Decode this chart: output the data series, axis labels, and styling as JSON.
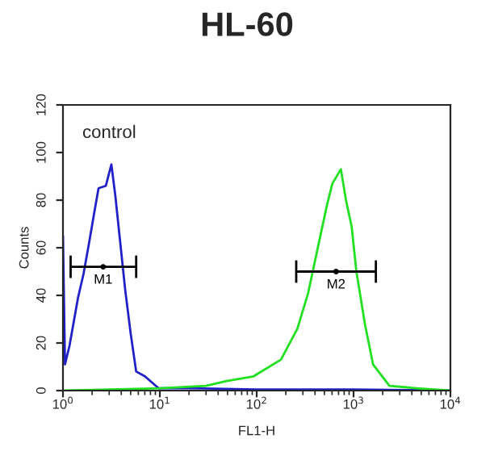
{
  "chart_data": {
    "type": "line",
    "title": "HL-60",
    "xlabel": "FL1-H",
    "ylabel": "Counts",
    "log": "x",
    "xlim": [
      1,
      10000
    ],
    "ylim": [
      0,
      120
    ],
    "xticks": [
      {
        "value": 1,
        "label": "10$^{0}$"
      },
      {
        "value": 10,
        "label": "10$^{1}$"
      },
      {
        "value": 100,
        "label": "10$^{2}$"
      },
      {
        "value": 1000,
        "label": "10$^{3}$"
      },
      {
        "value": 10000,
        "label": "10$^{4}$"
      }
    ],
    "yticks": [
      0,
      20,
      40,
      60,
      80,
      100,
      120
    ],
    "grid": false,
    "legend": false,
    "marker": "none",
    "line_style": "solid",
    "annotations": [
      "control"
    ],
    "series": [
      {
        "color": "#2020c8",
        "x": [
          1.0,
          1.05,
          1.17,
          1.43,
          1.63,
          1.86,
          2.13,
          2.33,
          2.77,
          3.16,
          3.47,
          3.86,
          4.4,
          5.0,
          5.7,
          7.0,
          9.7,
          19,
          100,
          1000,
          10000
        ],
        "values": [
          65,
          11,
          19,
          39,
          49,
          62,
          76,
          85,
          86,
          95,
          82,
          64,
          42,
          24,
          8,
          6,
          1,
          1,
          0.5,
          0.5,
          0
        ]
      },
      {
        "color": "#20e020",
        "x": [
          1,
          3,
          10,
          30,
          49,
          93,
          178,
          263,
          340,
          438,
          532,
          605,
          740,
          835,
          955,
          1070,
          1310,
          1590,
          2350,
          4470,
          10000
        ],
        "values": [
          0,
          0.5,
          1,
          2,
          4,
          6,
          13,
          26,
          41,
          62,
          78,
          87,
          93,
          80,
          69,
          50,
          28,
          11,
          2,
          1,
          0
        ]
      },
      {
        "type": "scatter",
        "name": "M1",
        "color": "#000000",
        "x": [
          2.6
        ],
        "values": [
          52
        ],
        "xerrors": [
          [
            1.2,
            5.7
          ]
        ]
      },
      {
        "type": "scatter",
        "name": "M2",
        "color": "#000000",
        "x": [
          660
        ],
        "values": [
          50
        ],
        "xerrors": [
          [
            256,
            1700
          ]
        ]
      }
    ]
  }
}
